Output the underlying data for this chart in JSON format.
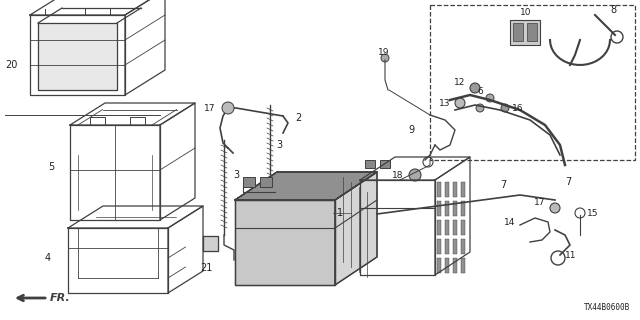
{
  "bg_color": "#ffffff",
  "line_color": "#404040",
  "text_color": "#222222",
  "ref_code": "TX44B0600B",
  "fig_w": 6.4,
  "fig_h": 3.2,
  "dpi": 100
}
